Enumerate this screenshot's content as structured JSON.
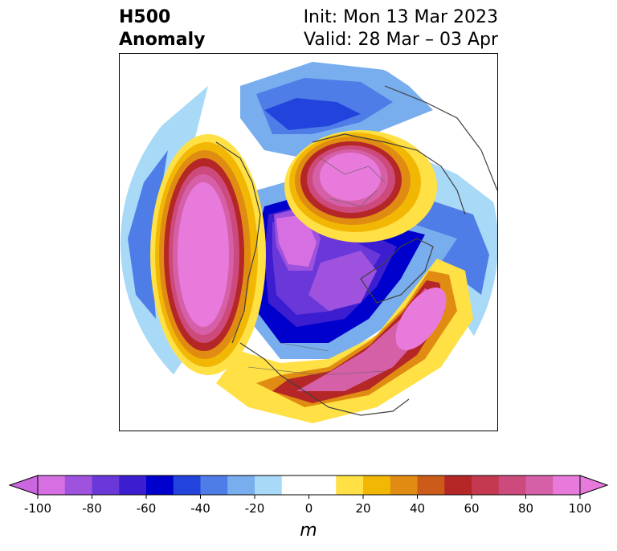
{
  "header": {
    "title_line1": "H500",
    "title_line2": "Anomaly",
    "init_text": "Init: Mon 13 Mar 2023",
    "valid_text": "Valid: 28 Mar – 03 Apr"
  },
  "colorbar": {
    "unit": "m",
    "tick_labels": [
      "-100",
      "-80",
      "-60",
      "-40",
      "-20",
      "0",
      "20",
      "40",
      "60",
      "80",
      "100"
    ],
    "levels": [
      -100,
      -90,
      -80,
      -70,
      -60,
      -50,
      -40,
      -30,
      -20,
      -10,
      10,
      20,
      30,
      40,
      50,
      60,
      70,
      80,
      90,
      100
    ],
    "under_color": "#cc66e0",
    "over_color": "#e87adc",
    "colors": [
      "#d670e2",
      "#9e52de",
      "#6a38d8",
      "#3c1ed0",
      "#0000cc",
      "#2244dd",
      "#4f7de8",
      "#78aeee",
      "#a8daf8",
      "#ffffff",
      "#ffe045",
      "#f2b705",
      "#e08c12",
      "#cc5b1a",
      "#b52626",
      "#c43850",
      "#cc4a7c",
      "#d660a8",
      "#e87adc"
    ]
  },
  "map": {
    "projection": "polar stereographic (north pole)",
    "field": "500 hPa geopotential height anomaly"
  }
}
